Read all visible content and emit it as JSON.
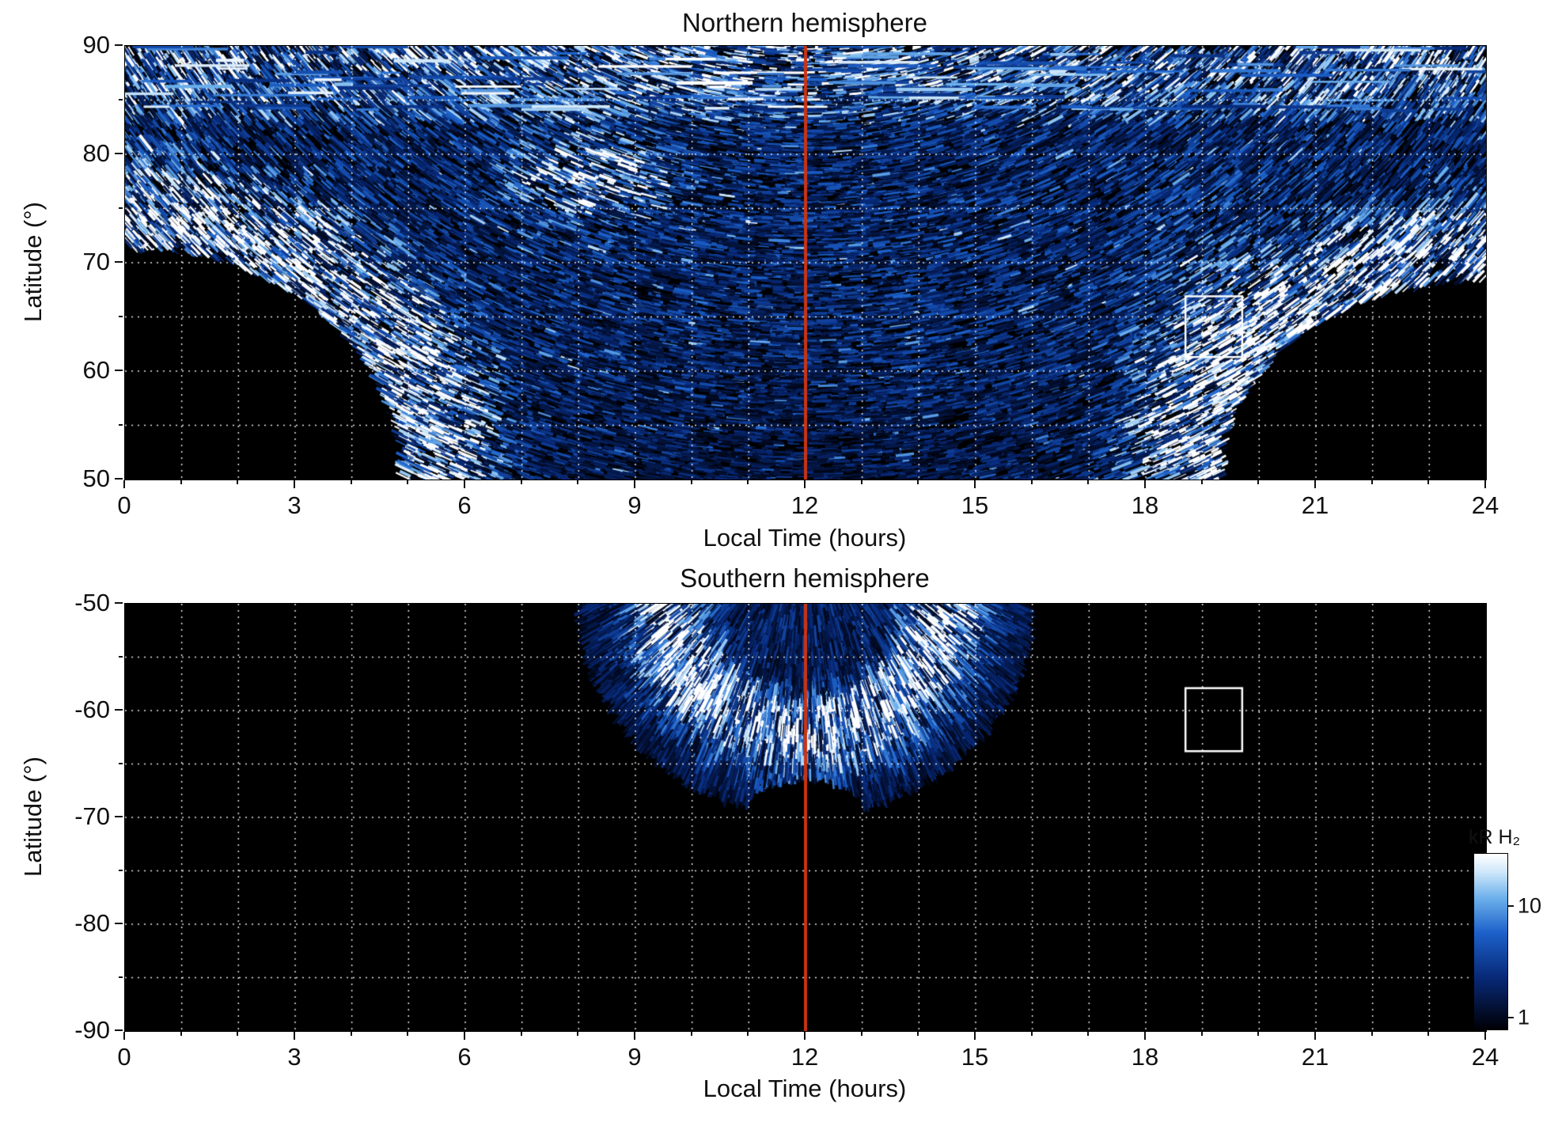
{
  "figure": {
    "background": "#ffffff",
    "noon_line_color": "#cc3311",
    "roi_color": "#ffffff"
  },
  "chart_data": [
    {
      "type": "heatmap",
      "title": "Northern hemisphere",
      "xlabel": "Local Time (hours)",
      "ylabel": "Latitude (°)",
      "xlim": [
        0,
        24
      ],
      "ylim": [
        50,
        90
      ],
      "xticks": [
        0,
        3,
        6,
        9,
        12,
        15,
        18,
        21,
        24
      ],
      "yticks": [
        50,
        60,
        70,
        80,
        90
      ],
      "grid": {
        "x_step": 1,
        "y_lines": [
          85,
          80,
          75,
          70,
          65,
          60,
          55
        ],
        "style": "dotted-white"
      },
      "noon_line": {
        "x": 12
      },
      "roi_box": {
        "hour0": 18.7,
        "hour1": 19.7,
        "lat0": 61.3,
        "lat1": 66.9
      },
      "value_units": "kR H₂",
      "coverage": {
        "description": "speckled auroral H2 emission (≈1–10+ kR) over most of panel; no data in lower corners",
        "no_data_corners": [
          {
            "center_hour": 0,
            "center_lat": 50,
            "rx_hours": 4.9,
            "ry_deg": 21.5
          },
          {
            "center_hour": 24,
            "center_lat": 50,
            "rx_hours": 4.7,
            "ry_deg": 18.5
          }
        ],
        "bright_features": [
          {
            "name": "dawn-flank-arcs",
            "hours": [
              0.5,
              5.5
            ],
            "lat": [
              50,
              80
            ]
          },
          {
            "name": "dusk-flank-arcs",
            "hours": [
              18,
              22.5
            ],
            "lat": [
              50,
              80
            ]
          },
          {
            "name": "polar-band",
            "lat_min": 83
          },
          {
            "name": "bright-patch",
            "hour": 8.2,
            "lat": 78,
            "sigma_hours": 1.3,
            "sigma_deg": 3.4
          }
        ],
        "texture": "short dashes along arcs concentric with the coverage dome"
      }
    },
    {
      "type": "heatmap",
      "title": "Southern hemisphere",
      "xlabel": "Local Time (hours)",
      "ylabel": "Latitude (°)",
      "xlim": [
        0,
        24
      ],
      "ylim": [
        -90,
        -50
      ],
      "xticks": [
        0,
        3,
        6,
        9,
        12,
        15,
        18,
        21,
        24
      ],
      "yticks": [
        -50,
        -60,
        -70,
        -80,
        -90
      ],
      "grid": {
        "x_step": 1,
        "y_lines": [
          -55,
          -60,
          -65,
          -70,
          -75,
          -80,
          -85
        ],
        "style": "dotted-white"
      },
      "noon_line": {
        "x": 12
      },
      "roi_box": {
        "hour0": 18.7,
        "hour1": 19.7,
        "lat0": -63.8,
        "lat1": -57.9
      },
      "value_units": "kR H₂",
      "emission_fan": {
        "description": "single bright auroral fan near noon, rest of hemisphere black (no data / no emission)",
        "center_hour": 12,
        "top_lat": -50,
        "rx_hours": 3.9,
        "ry_deg": 19.2,
        "bright_ring_center_r": 0.62,
        "bright_ring_sigma": 0.16,
        "dark_notch": {
          "center_hour": 12,
          "center_lat": -68.4,
          "rx_hours": 1.0,
          "ry_deg": 2.4
        },
        "texture": "radial streaks converging toward noon meridian"
      }
    }
  ],
  "colorbar": {
    "title": "kR H₂",
    "scale": "log",
    "top_value": 30,
    "bottom_value": 0.8,
    "ticks": [
      {
        "label": "10",
        "value": 10
      },
      {
        "label": "1",
        "value": 1
      }
    ],
    "colors": [
      "#000006",
      "#082a7a",
      "#1c61ca",
      "#6eb1ec",
      "#d0e8fa",
      "#ffffff"
    ]
  }
}
